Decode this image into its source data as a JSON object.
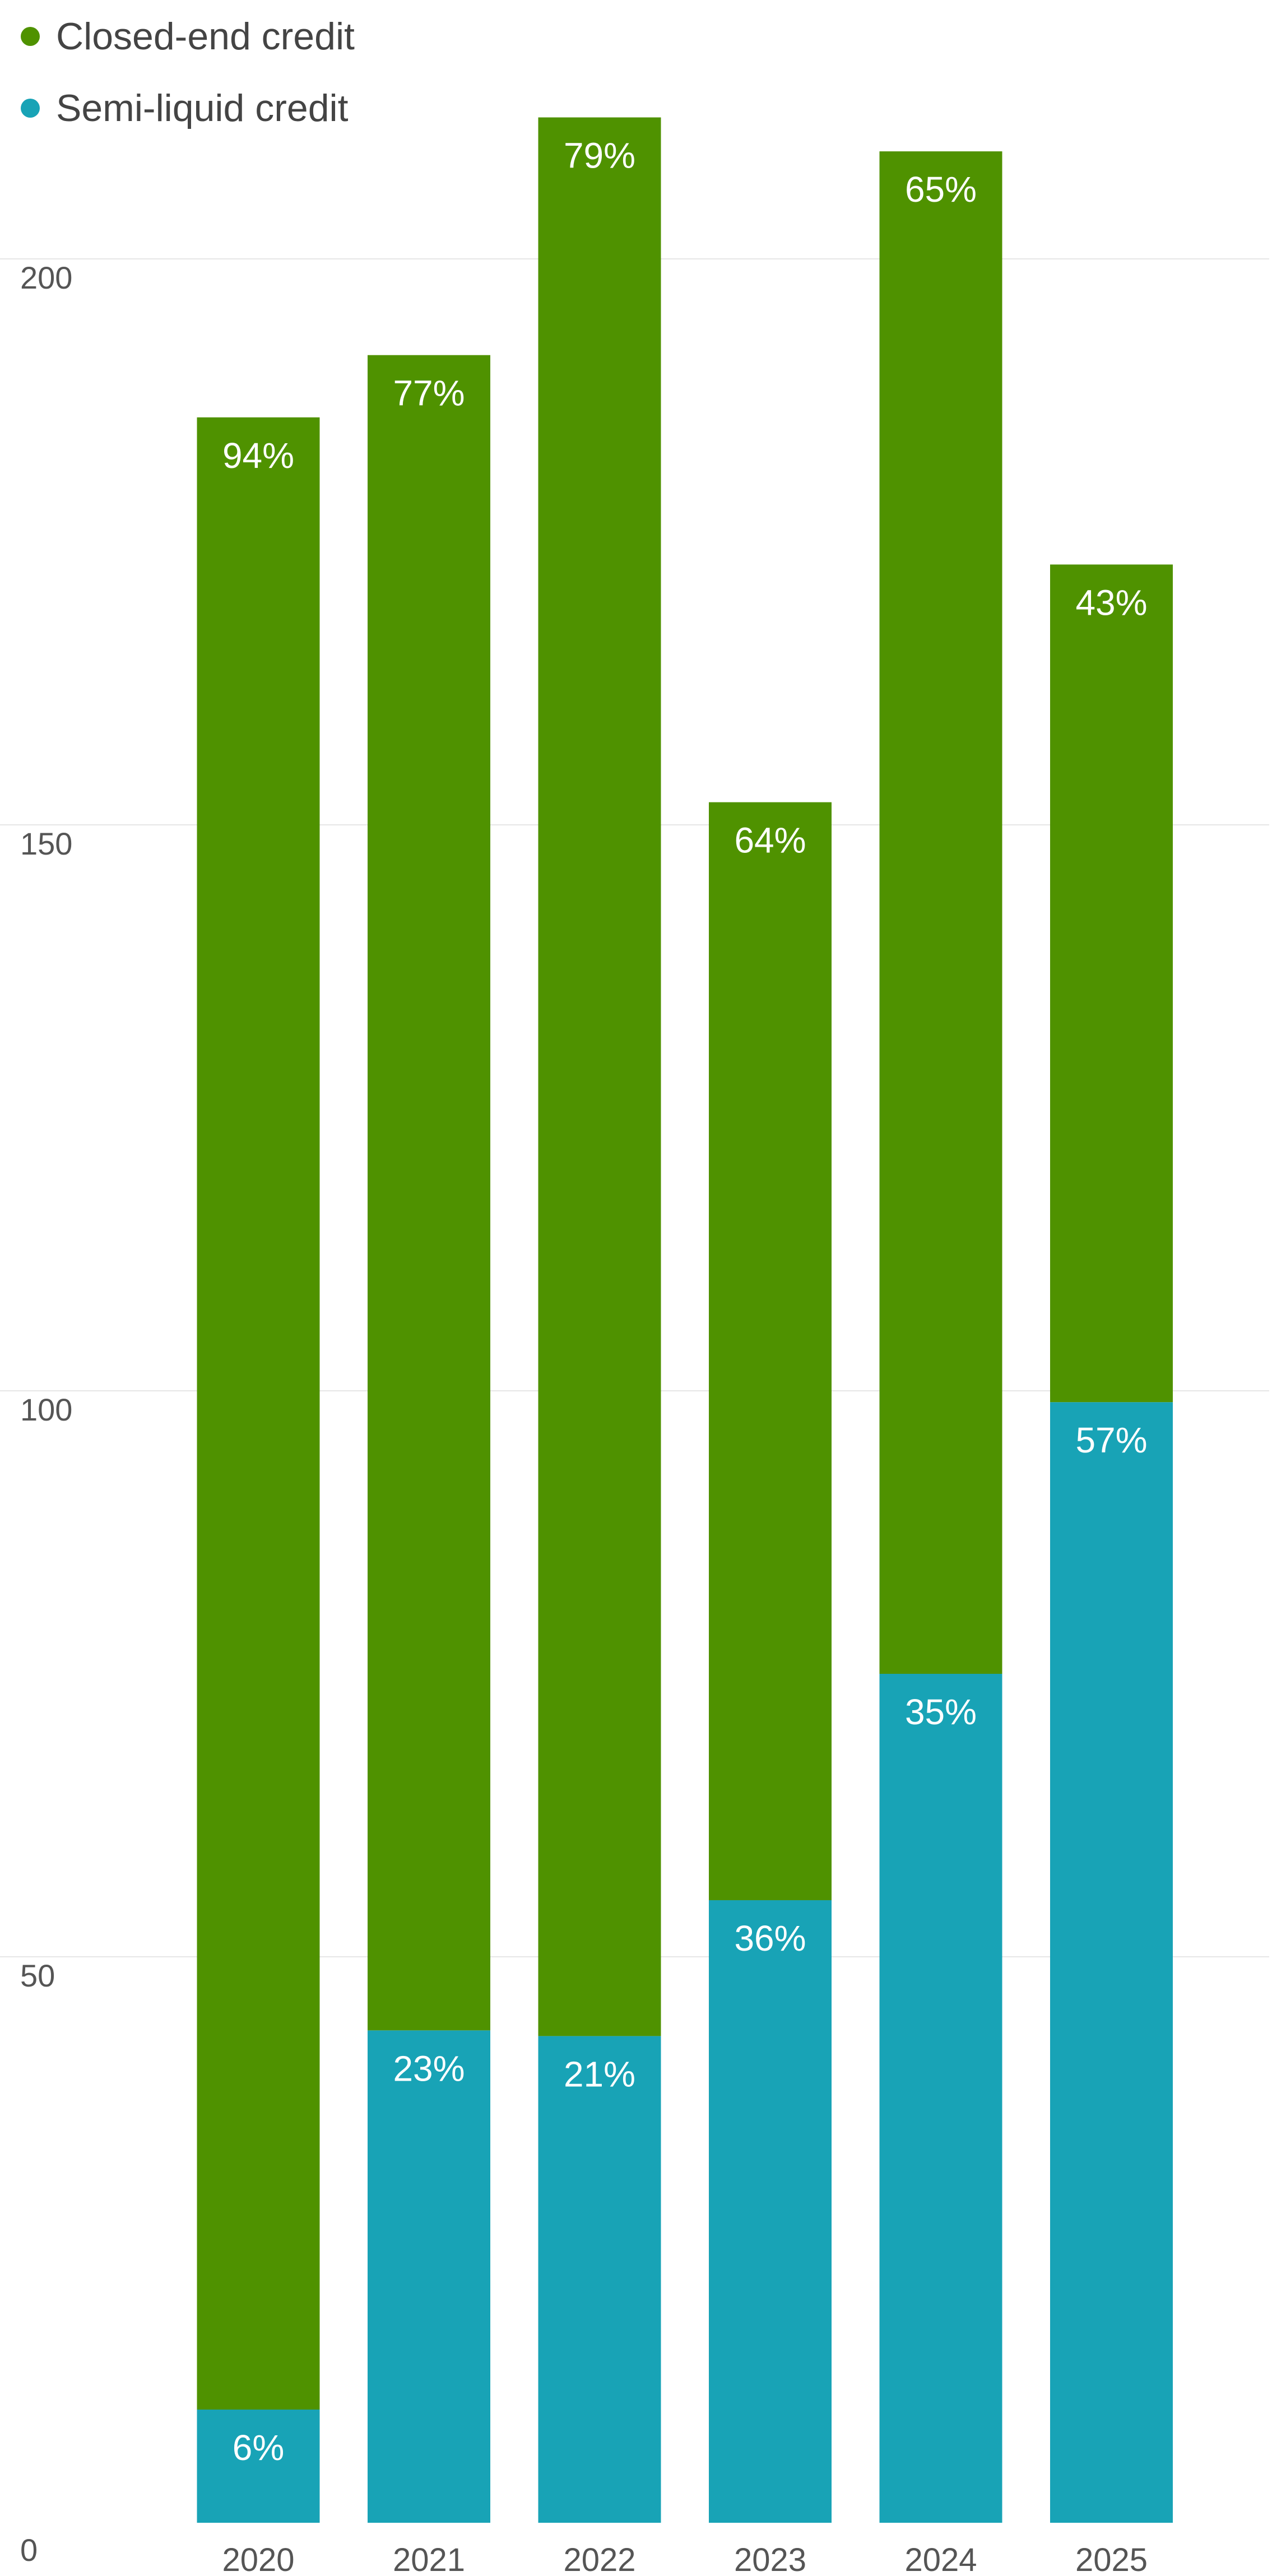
{
  "chart_data": {
    "type": "bar",
    "stacked": true,
    "categories": [
      "2020",
      "2021",
      "2022",
      "2023",
      "2024",
      "2025"
    ],
    "series": [
      {
        "name": "Semi-liquid credit",
        "color": "#18A3B6",
        "values": [
          10.0,
          43.5,
          43.0,
          55.0,
          75.0,
          99.0
        ],
        "labels": [
          "6%",
          "23%",
          "21%",
          "36%",
          "35%",
          "57%"
        ]
      },
      {
        "name": "Closed-end credit",
        "color": "#4F9200",
        "values": [
          176.0,
          148.0,
          169.5,
          97.0,
          134.5,
          74.0
        ],
        "labels": [
          "94%",
          "77%",
          "79%",
          "64%",
          "65%",
          "43%"
        ]
      }
    ],
    "y_ticks": [
      "0",
      "50",
      "100",
      "150",
      "200"
    ],
    "ylim": [
      0,
      200
    ],
    "grid": true,
    "legend_position": "top-left",
    "title": "",
    "xlabel": "",
    "ylabel": ""
  },
  "colors": {
    "grid": "#E6E6E6",
    "axis_text": "#555555",
    "legend_text": "#444444",
    "bar_label": "#FFFFFF"
  }
}
